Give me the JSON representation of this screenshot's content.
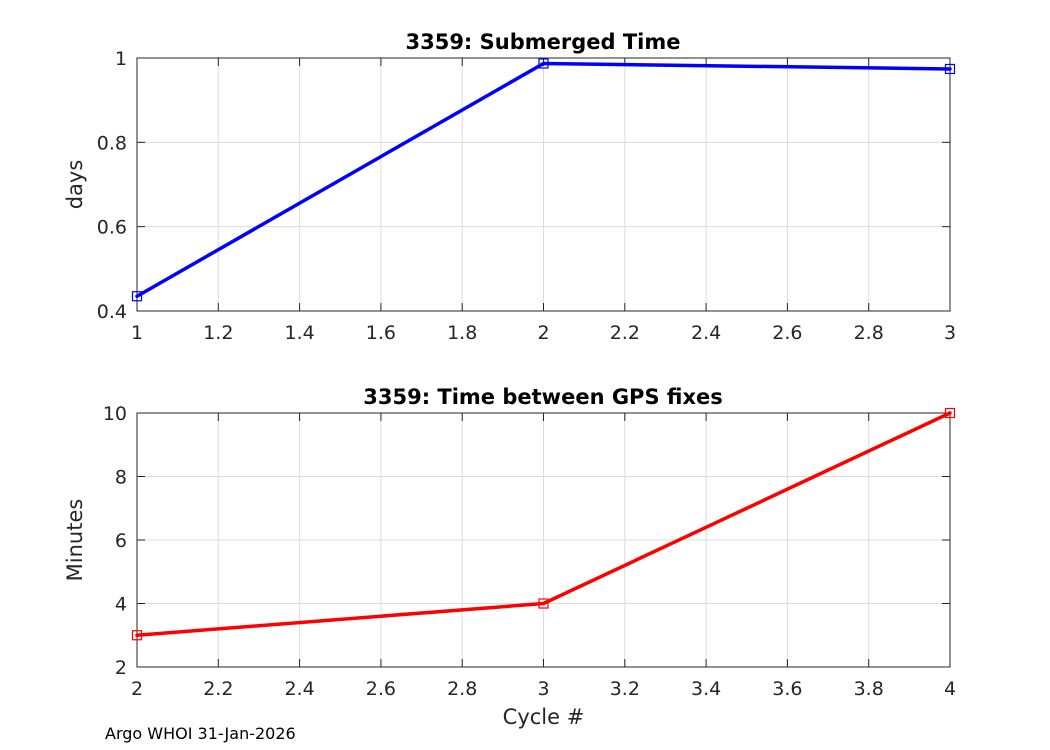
{
  "footer": "Argo WHOI 31-Jan-2026",
  "chart_data": [
    {
      "type": "line",
      "title": "3359: Submerged Time",
      "xlabel": "",
      "ylabel": "days",
      "x": [
        1,
        2,
        3
      ],
      "series": [
        {
          "values": [
            0.435,
            0.987,
            0.974
          ],
          "color": "#0000ff",
          "marker": "square"
        }
      ],
      "xlim": [
        1,
        3
      ],
      "ylim": [
        0.4,
        1
      ],
      "xticks": [
        1,
        1.2,
        1.4,
        1.6,
        1.8,
        2,
        2.2,
        2.4,
        2.6,
        2.8,
        3
      ],
      "xtick_labels": [
        "1",
        "1.2",
        "1.4",
        "1.6",
        "1.8",
        "2",
        "2.2",
        "2.4",
        "2.6",
        "2.8",
        "3"
      ],
      "yticks": [
        0.4,
        0.6,
        0.8,
        1
      ],
      "ytick_labels": [
        "0.4",
        "0.6",
        "0.8",
        "1"
      ],
      "grid": true
    },
    {
      "type": "line",
      "title": "3359: Time between GPS fixes",
      "xlabel": "Cycle #",
      "ylabel": "Minutes",
      "x": [
        2,
        3,
        4
      ],
      "series": [
        {
          "values": [
            3,
            4,
            10
          ],
          "color": "#ff0000",
          "marker": "square"
        }
      ],
      "xlim": [
        2,
        4
      ],
      "ylim": [
        2,
        10
      ],
      "xticks": [
        2,
        2.2,
        2.4,
        2.6,
        2.8,
        3,
        3.2,
        3.4,
        3.6,
        3.8,
        4
      ],
      "xtick_labels": [
        "2",
        "2.2",
        "2.4",
        "2.6",
        "2.8",
        "3",
        "3.2",
        "3.4",
        "3.6",
        "3.8",
        "4"
      ],
      "yticks": [
        2,
        4,
        6,
        8,
        10
      ],
      "ytick_labels": [
        "2",
        "4",
        "6",
        "8",
        "10"
      ],
      "grid": true
    }
  ]
}
